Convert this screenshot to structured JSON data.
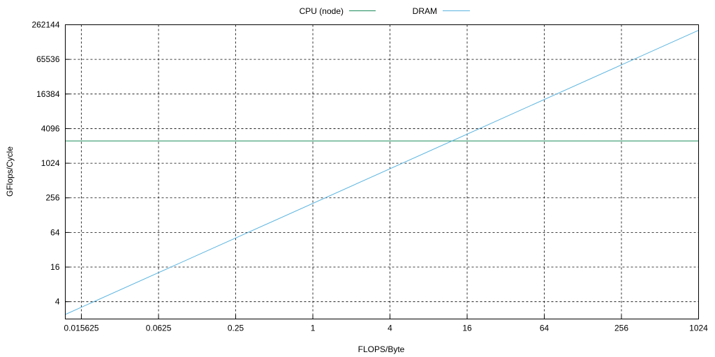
{
  "chart_data": {
    "type": "line",
    "title": "",
    "xlabel": "FLOPS/Byte",
    "ylabel": "GFlops/Cycle",
    "xscale": "log2",
    "yscale": "log2",
    "xlim": [
      0.0117,
      1024
    ],
    "ylim": [
      2,
      262144
    ],
    "x_ticks": [
      0.015625,
      0.0625,
      0.25,
      1,
      4,
      16,
      64,
      256,
      1024
    ],
    "x_tick_labels": [
      "0.015625",
      "0.0625",
      "0.25",
      "1",
      "4",
      "16",
      "64",
      "256",
      "1024"
    ],
    "y_ticks": [
      4,
      16,
      64,
      256,
      1024,
      4096,
      16384,
      65536,
      262144
    ],
    "y_tick_labels": [
      "4",
      "16",
      "64",
      "256",
      "1024",
      "4096",
      "16384",
      "65536",
      "262144"
    ],
    "grid": true,
    "legend_position": "top-center",
    "series": [
      {
        "name": "CPU (node)",
        "color": "#1a8a5a",
        "x": [
          0.0117,
          1024
        ],
        "y": [
          2500,
          2500
        ]
      },
      {
        "name": "DRAM",
        "color": "#5ab4e0",
        "x": [
          0.0117,
          1024
        ],
        "y": [
          2.4,
          210000
        ]
      }
    ]
  }
}
